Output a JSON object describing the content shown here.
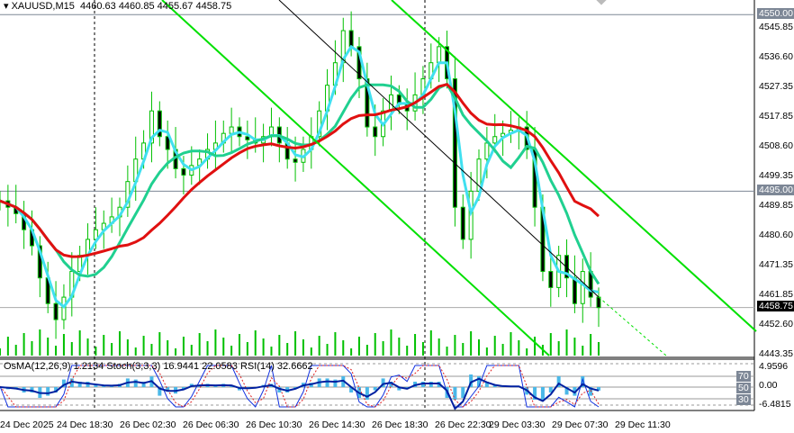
{
  "header": {
    "symbol": "XAUUSD,M15",
    "ohlc": "4460.63 4460.85 4455.67 4458.75"
  },
  "indicators": {
    "label": "OsMA(12,26,9) 1.2134  Stoch(3,3,3) 16.9441 22.0583  RSI(14) 32.6662",
    "scale": [
      "4.9596",
      "70",
      "0.00",
      "50",
      "30",
      "-6.4815"
    ]
  },
  "chart_data": {
    "type": "candlestick",
    "title": "XAUUSD,M15",
    "y_ticks": [
      "4545.85",
      "4536.60",
      "4527.35",
      "4517.85",
      "4508.60",
      "4499.35",
      "4489.85",
      "4480.60",
      "4471.35",
      "4461.85",
      "4452.60",
      "4443.35"
    ],
    "ylim": [
      4443.35,
      4552
    ],
    "x_ticks": [
      "24 Dec 2025",
      "24 Dec 18:30",
      "26 Dec 02:30",
      "26 Dec 06:30",
      "26 Dec 10:30",
      "26 Dec 14:30",
      "26 Dec 18:30",
      "26 Dec 22:30",
      "29 Dec 03:30",
      "29 Dec 07:30",
      "29 Dec 11:30"
    ],
    "levels": [
      {
        "price": "4550.00",
        "color": "#7d8796"
      },
      {
        "price": "4495.00",
        "color": "#7d8796"
      }
    ],
    "current_price": "4458.75",
    "closes": [
      4492,
      4490,
      4488,
      4483,
      4478,
      4468,
      4460,
      4455,
      4462,
      4470,
      4475,
      4480,
      4483,
      4485,
      4487,
      4490,
      4498,
      4505,
      4510,
      4520,
      4512,
      4508,
      4502,
      4500,
      4503,
      4505,
      4508,
      4510,
      4513,
      4515,
      4512,
      4511,
      4510,
      4512,
      4515,
      4510,
      4505,
      4504,
      4508,
      4512,
      4520,
      4528,
      4535,
      4545,
      4540,
      4530,
      4515,
      4512,
      4520,
      4525,
      4522,
      4520,
      4525,
      4530,
      4535,
      4540,
      4530,
      4490,
      4480,
      4495,
      4505,
      4510,
      4512,
      4513,
      4514,
      4515,
      4508,
      4490,
      4470,
      4465,
      4475,
      4468,
      4460,
      4470,
      4462,
      4458.75
    ],
    "colors": {
      "bull": "#00c000",
      "ma_fast": "#40e0f0",
      "ma_mid": "#20d090",
      "ma_slow": "#e01010",
      "channel": "#00e000",
      "volume": "#00c000"
    }
  }
}
